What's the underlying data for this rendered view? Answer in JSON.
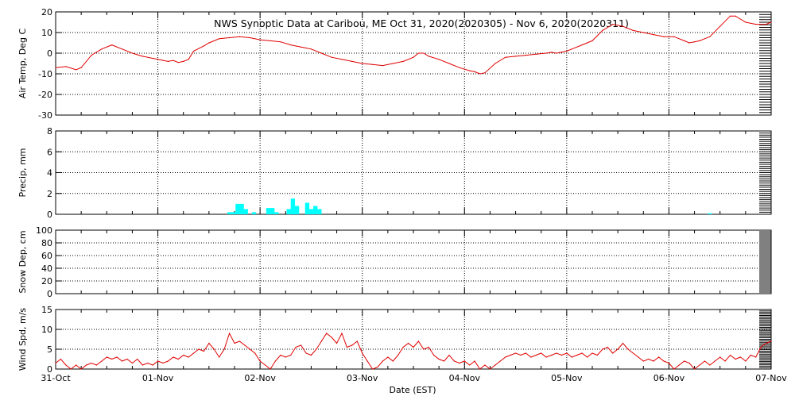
{
  "title": "NWS Synoptic Data at Caribou, ME   Oct 31, 2020(2020305) - Nov  6, 2020(2020311)",
  "colors": {
    "line": "#e00000",
    "precip": "#00ffff",
    "axis": "#000000",
    "grid": "#000000",
    "background": "#ffffff"
  },
  "xaxis": {
    "label": "Date (EST)",
    "ticks": [
      "31-Oct",
      "01-Nov",
      "02-Nov",
      "03-Nov",
      "04-Nov",
      "05-Nov",
      "06-Nov",
      "07-Nov"
    ],
    "range_days": [
      0,
      7
    ]
  },
  "chart_data": [
    {
      "type": "line",
      "ylabel": "Air Temp, Deg C",
      "ylim": [
        -30,
        20
      ],
      "yticks": [
        -30,
        -20,
        -10,
        0,
        10,
        20
      ],
      "grid": true,
      "x_unit": "days since 31-Oct 00:00 EST",
      "points": [
        [
          0,
          -7
        ],
        [
          0.1,
          -6.5
        ],
        [
          0.2,
          -8
        ],
        [
          0.25,
          -7
        ],
        [
          0.35,
          -1
        ],
        [
          0.45,
          2
        ],
        [
          0.55,
          4
        ],
        [
          0.65,
          2
        ],
        [
          0.75,
          0
        ],
        [
          0.85,
          -1.5
        ],
        [
          0.95,
          -2.5
        ],
        [
          1.0,
          -3
        ],
        [
          1.05,
          -3.5
        ],
        [
          1.1,
          -4
        ],
        [
          1.15,
          -3.5
        ],
        [
          1.2,
          -4.5
        ],
        [
          1.25,
          -4
        ],
        [
          1.3,
          -3
        ],
        [
          1.35,
          1
        ],
        [
          1.45,
          3.5
        ],
        [
          1.5,
          5
        ],
        [
          1.6,
          7
        ],
        [
          1.7,
          7.5
        ],
        [
          1.8,
          8
        ],
        [
          1.9,
          7.5
        ],
        [
          2.0,
          6.5
        ],
        [
          2.1,
          6
        ],
        [
          2.2,
          5.5
        ],
        [
          2.3,
          4
        ],
        [
          2.4,
          3
        ],
        [
          2.5,
          2
        ],
        [
          2.6,
          0
        ],
        [
          2.7,
          -2
        ],
        [
          2.8,
          -3
        ],
        [
          2.9,
          -4
        ],
        [
          3.0,
          -5
        ],
        [
          3.1,
          -5.5
        ],
        [
          3.2,
          -6
        ],
        [
          3.3,
          -5
        ],
        [
          3.4,
          -4
        ],
        [
          3.5,
          -2
        ],
        [
          3.55,
          0
        ],
        [
          3.6,
          0
        ],
        [
          3.65,
          -1.5
        ],
        [
          3.75,
          -3
        ],
        [
          3.85,
          -5
        ],
        [
          3.95,
          -7
        ],
        [
          4.05,
          -8.5
        ],
        [
          4.1,
          -9
        ],
        [
          4.15,
          -10
        ],
        [
          4.2,
          -9.5
        ],
        [
          4.3,
          -5
        ],
        [
          4.4,
          -2
        ],
        [
          4.5,
          -1.5
        ],
        [
          4.6,
          -1
        ],
        [
          4.7,
          -0.5
        ],
        [
          4.8,
          0
        ],
        [
          4.85,
          0.5
        ],
        [
          4.9,
          0
        ],
        [
          4.95,
          0.5
        ],
        [
          5.0,
          1
        ],
        [
          5.05,
          2
        ],
        [
          5.15,
          4
        ],
        [
          5.25,
          6
        ],
        [
          5.35,
          11
        ],
        [
          5.45,
          14
        ],
        [
          5.55,
          13
        ],
        [
          5.65,
          11
        ],
        [
          5.75,
          10
        ],
        [
          5.85,
          9
        ],
        [
          5.95,
          8
        ],
        [
          6.05,
          8
        ],
        [
          6.15,
          6
        ],
        [
          6.2,
          5
        ],
        [
          6.25,
          5.5
        ],
        [
          6.3,
          6
        ],
        [
          6.4,
          8
        ],
        [
          6.5,
          13
        ],
        [
          6.6,
          18
        ],
        [
          6.65,
          18
        ],
        [
          6.75,
          15
        ],
        [
          6.85,
          14
        ],
        [
          6.95,
          14
        ],
        [
          7.0,
          15
        ]
      ]
    },
    {
      "type": "bar",
      "ylabel": "Precip, mm",
      "ylim": [
        0,
        8
      ],
      "yticks": [
        0,
        2,
        4,
        6,
        8
      ],
      "grid": true,
      "x_unit": "days since 31-Oct 00:00 EST",
      "bar_width_days": 0.0417,
      "points": [
        [
          1.68,
          0.2
        ],
        [
          1.72,
          0.2
        ],
        [
          1.76,
          1
        ],
        [
          1.8,
          1
        ],
        [
          1.84,
          0.5
        ],
        [
          1.92,
          0.2
        ],
        [
          2.06,
          0.6
        ],
        [
          2.1,
          0.6
        ],
        [
          2.14,
          0.2
        ],
        [
          2.26,
          0.5
        ],
        [
          2.3,
          1.5
        ],
        [
          2.34,
          0.8
        ],
        [
          2.44,
          1.1
        ],
        [
          2.48,
          0.5
        ],
        [
          2.52,
          0.8
        ],
        [
          2.56,
          0.5
        ],
        [
          6.38,
          0.1
        ]
      ]
    },
    {
      "type": "line",
      "ylabel": "Snow Dep, cm",
      "ylim": [
        0,
        100
      ],
      "yticks": [
        0,
        20,
        40,
        60,
        80,
        100
      ],
      "grid": true,
      "points": []
    },
    {
      "type": "line",
      "ylabel": "Wind Spd, m/s",
      "ylim": [
        0,
        15
      ],
      "yticks": [
        0,
        5,
        10,
        15
      ],
      "grid": true,
      "x_unit": "days since 31-Oct 00:00 EST",
      "points": [
        [
          0,
          1.5
        ],
        [
          0.05,
          2.5
        ],
        [
          0.1,
          1
        ],
        [
          0.15,
          0
        ],
        [
          0.2,
          1
        ],
        [
          0.25,
          0
        ],
        [
          0.3,
          1
        ],
        [
          0.35,
          1.5
        ],
        [
          0.4,
          1
        ],
        [
          0.45,
          2
        ],
        [
          0.5,
          3
        ],
        [
          0.55,
          2.5
        ],
        [
          0.6,
          3
        ],
        [
          0.65,
          2
        ],
        [
          0.7,
          2.5
        ],
        [
          0.75,
          1.5
        ],
        [
          0.8,
          2.5
        ],
        [
          0.85,
          1
        ],
        [
          0.9,
          1.5
        ],
        [
          0.95,
          1
        ],
        [
          1.0,
          2
        ],
        [
          1.05,
          1.5
        ],
        [
          1.1,
          2
        ],
        [
          1.15,
          3
        ],
        [
          1.2,
          2.5
        ],
        [
          1.25,
          3.5
        ],
        [
          1.3,
          3
        ],
        [
          1.35,
          4
        ],
        [
          1.4,
          5
        ],
        [
          1.45,
          4.5
        ],
        [
          1.5,
          6.5
        ],
        [
          1.55,
          5
        ],
        [
          1.6,
          3
        ],
        [
          1.65,
          5
        ],
        [
          1.7,
          9
        ],
        [
          1.75,
          6.5
        ],
        [
          1.8,
          7
        ],
        [
          1.85,
          6
        ],
        [
          1.9,
          5
        ],
        [
          1.95,
          4
        ],
        [
          2.0,
          2
        ],
        [
          2.05,
          1
        ],
        [
          2.1,
          0
        ],
        [
          2.15,
          2
        ],
        [
          2.2,
          3.5
        ],
        [
          2.25,
          3
        ],
        [
          2.3,
          3.5
        ],
        [
          2.35,
          5.5
        ],
        [
          2.4,
          6
        ],
        [
          2.45,
          4
        ],
        [
          2.5,
          3.5
        ],
        [
          2.55,
          5
        ],
        [
          2.6,
          7
        ],
        [
          2.65,
          9
        ],
        [
          2.7,
          8
        ],
        [
          2.75,
          6.5
        ],
        [
          2.8,
          9
        ],
        [
          2.85,
          5.5
        ],
        [
          2.9,
          6
        ],
        [
          2.95,
          7
        ],
        [
          3.0,
          4
        ],
        [
          3.05,
          2
        ],
        [
          3.1,
          0
        ],
        [
          3.15,
          0.5
        ],
        [
          3.2,
          2
        ],
        [
          3.25,
          3
        ],
        [
          3.3,
          2
        ],
        [
          3.35,
          3.5
        ],
        [
          3.4,
          5.5
        ],
        [
          3.45,
          6.5
        ],
        [
          3.5,
          5.5
        ],
        [
          3.55,
          7
        ],
        [
          3.6,
          5
        ],
        [
          3.65,
          5.5
        ],
        [
          3.7,
          3.5
        ],
        [
          3.75,
          2.5
        ],
        [
          3.8,
          2
        ],
        [
          3.85,
          3.5
        ],
        [
          3.9,
          2
        ],
        [
          3.95,
          1.5
        ],
        [
          4.0,
          2
        ],
        [
          4.05,
          1
        ],
        [
          4.1,
          2
        ],
        [
          4.15,
          0
        ],
        [
          4.2,
          1
        ],
        [
          4.25,
          0
        ],
        [
          4.3,
          1
        ],
        [
          4.35,
          2
        ],
        [
          4.4,
          3
        ],
        [
          4.45,
          3.5
        ],
        [
          4.5,
          4
        ],
        [
          4.55,
          3.5
        ],
        [
          4.6,
          4
        ],
        [
          4.65,
          3
        ],
        [
          4.7,
          3.5
        ],
        [
          4.75,
          4
        ],
        [
          4.8,
          3
        ],
        [
          4.85,
          3.5
        ],
        [
          4.9,
          4
        ],
        [
          4.95,
          3.5
        ],
        [
          5.0,
          4
        ],
        [
          5.05,
          3
        ],
        [
          5.1,
          3.5
        ],
        [
          5.15,
          4
        ],
        [
          5.2,
          3
        ],
        [
          5.25,
          4
        ],
        [
          5.3,
          3.5
        ],
        [
          5.35,
          5
        ],
        [
          5.4,
          5.5
        ],
        [
          5.45,
          4
        ],
        [
          5.5,
          5
        ],
        [
          5.55,
          6.5
        ],
        [
          5.6,
          5
        ],
        [
          5.65,
          4
        ],
        [
          5.7,
          3
        ],
        [
          5.75,
          2
        ],
        [
          5.8,
          2.5
        ],
        [
          5.85,
          2
        ],
        [
          5.9,
          3
        ],
        [
          5.95,
          2
        ],
        [
          6.0,
          1.5
        ],
        [
          6.05,
          0
        ],
        [
          6.1,
          1
        ],
        [
          6.15,
          2
        ],
        [
          6.2,
          1.5
        ],
        [
          6.25,
          0
        ],
        [
          6.3,
          1
        ],
        [
          6.35,
          2
        ],
        [
          6.4,
          1
        ],
        [
          6.45,
          2
        ],
        [
          6.5,
          3
        ],
        [
          6.55,
          2
        ],
        [
          6.6,
          3.5
        ],
        [
          6.65,
          2.5
        ],
        [
          6.7,
          3
        ],
        [
          6.75,
          2
        ],
        [
          6.8,
          3.5
        ],
        [
          6.85,
          3
        ],
        [
          6.9,
          5.5
        ],
        [
          6.95,
          6.5
        ],
        [
          7.0,
          7
        ]
      ]
    }
  ]
}
